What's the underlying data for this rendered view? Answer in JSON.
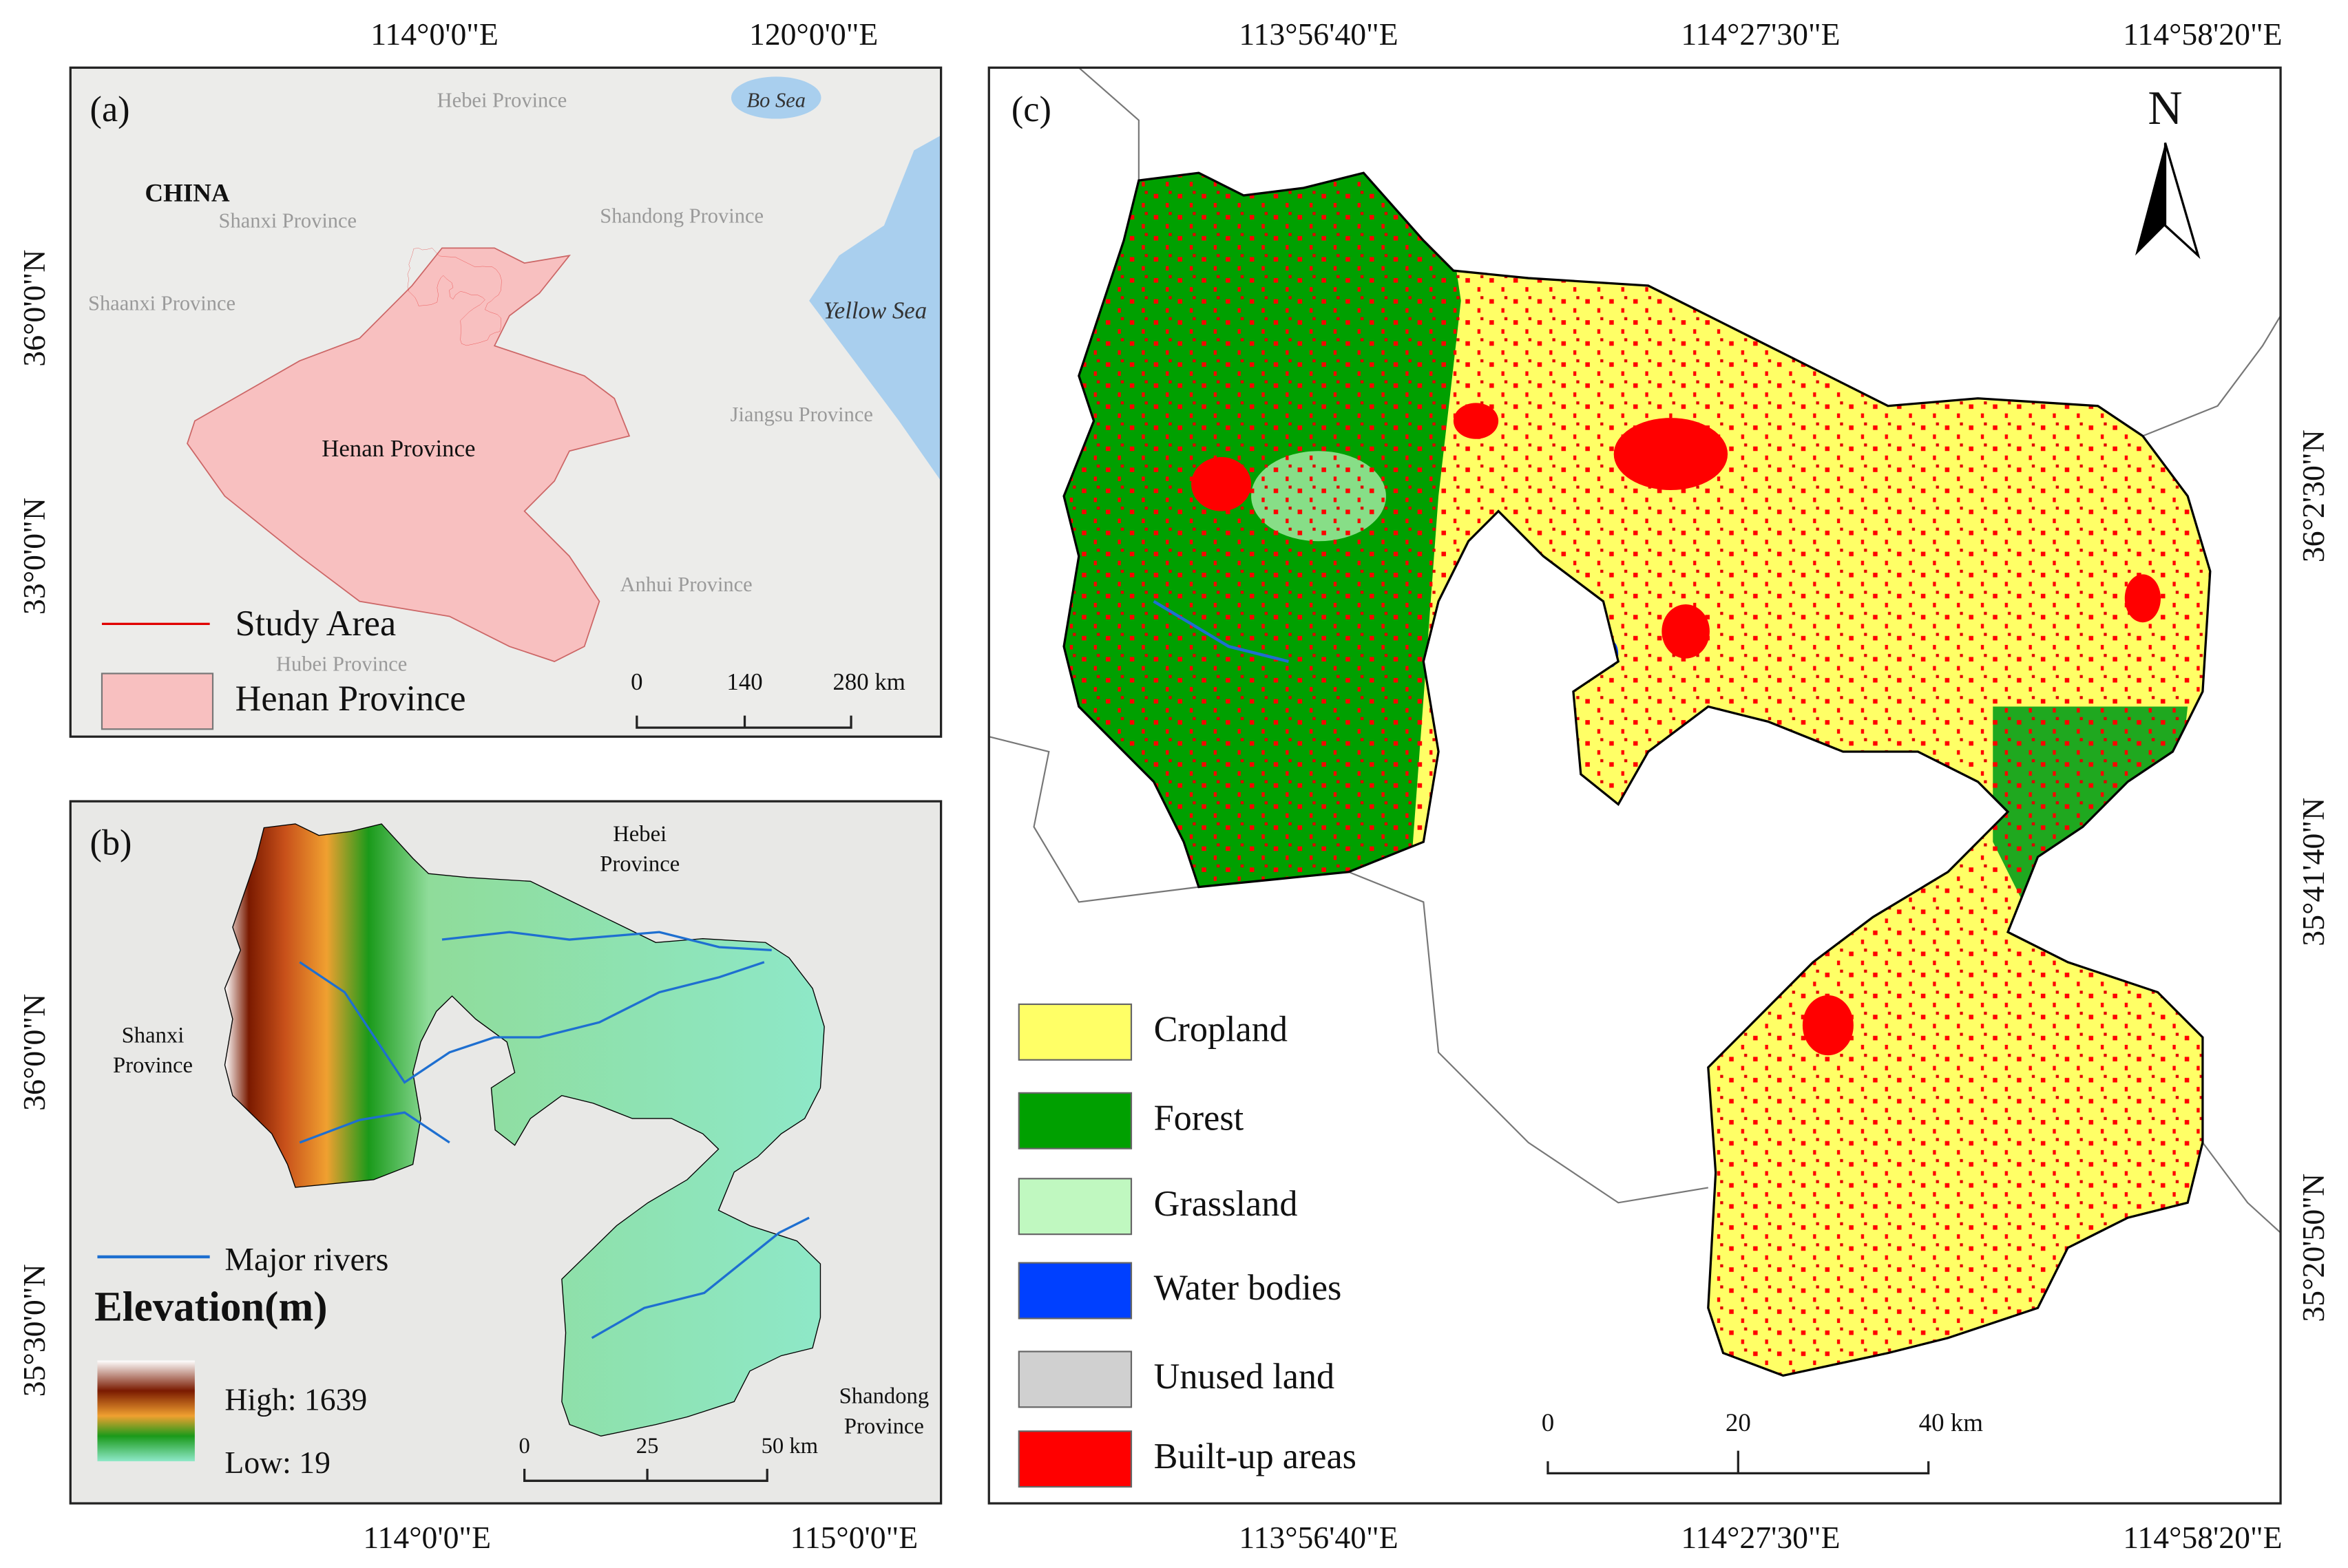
{
  "panel_a": {
    "label": "(a)",
    "top_coords": [
      "114°0'0\"E",
      "120°0'0\"E"
    ],
    "left_coords": [
      "36°0'0\"N",
      "33°0'0\"N"
    ],
    "places": [
      "Hebei Province",
      "Bo Sea",
      "CHINA",
      "Shanxi Province",
      "Shandong Province",
      "Shaanxi Province",
      "Yellow Sea",
      "Henan Province",
      "Jiangsu Province",
      "Anhui Province",
      "Hubei Province"
    ],
    "legend": [
      "Study Area",
      "Henan Province"
    ],
    "scale": [
      "0",
      "140",
      "280 km"
    ]
  },
  "panel_b": {
    "label": "(b)",
    "bottom_coords": [
      "114°0'0\"E",
      "115°0'0\"E"
    ],
    "left_coords": [
      "36°0'0\"N",
      "35°30'0\"N"
    ],
    "places": [
      [
        "Hebei",
        "Province"
      ],
      [
        "Shanxi",
        "Province"
      ],
      [
        "Shandong",
        "Province"
      ]
    ],
    "legend": {
      "rivers": "Major rivers",
      "title": "Elevation(m)",
      "high": "High: 1639",
      "low": "Low: 19"
    },
    "scale": [
      "0",
      "25",
      "50 km"
    ]
  },
  "panel_c": {
    "label": "(c)",
    "north": "N",
    "top_coords": [
      "113°56'40\"E",
      "114°27'30\"E",
      "114°58'20\"E"
    ],
    "bottom_coords": [
      "113°56'40\"E",
      "114°27'30\"E",
      "114°58'20\"E"
    ],
    "right_coords": [
      "36°2'30\"N",
      "35°41'40\"N",
      "35°20'50\"N"
    ],
    "legend": [
      {
        "label": "Cropland",
        "color": "#ffff66"
      },
      {
        "label": "Forest",
        "color": "#00a000"
      },
      {
        "label": "Grassland",
        "color": "#c0f8c0"
      },
      {
        "label": "Water bodies",
        "color": "#0040ff"
      },
      {
        "label": "Unused land",
        "color": "#d0d0d0"
      },
      {
        "label": "Built-up areas",
        "color": "#ff0000"
      }
    ],
    "scale": [
      "0",
      "20",
      "40 km"
    ]
  }
}
